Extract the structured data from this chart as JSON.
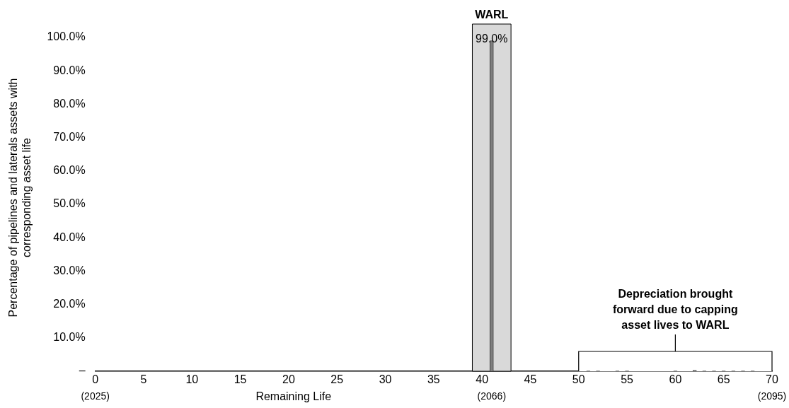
{
  "chart_data": {
    "type": "bar",
    "xlabel": "Remaining Life",
    "ylabel": "Percentage of pipelines and laterals assets with corresponding asset life",
    "x": [
      41,
      51,
      52,
      54,
      55,
      60,
      62,
      63,
      64,
      65,
      66,
      67,
      68
    ],
    "series": [
      {
        "color": "#7f7f7f",
        "values": [
          99.0,
          0.1,
          0.1,
          0.1,
          0.1,
          0.1,
          0.3,
          0.1,
          0.1,
          0.1,
          0.1,
          0.1,
          0.1
        ],
        "value_labels": [
          "99.0%",
          null,
          null,
          null,
          null,
          null,
          null,
          null,
          null,
          null,
          null,
          null,
          null
        ]
      }
    ],
    "xlim": [
      0,
      70
    ],
    "xticks": [
      0,
      5,
      10,
      15,
      20,
      25,
      30,
      35,
      40,
      45,
      50,
      55,
      60,
      65,
      70
    ],
    "x2lim": [
      2025,
      2095
    ],
    "x2ticks": [
      {
        "value": 2025,
        "label": "(2025)"
      },
      {
        "value": 2066,
        "label": "(2066)"
      },
      {
        "value": 2095,
        "label": "(2095)"
      }
    ],
    "ylim": [
      0,
      104
    ],
    "yticks": [
      {
        "value": 0,
        "label": "–"
      },
      {
        "value": 10,
        "label": "10.0%"
      },
      {
        "value": 20,
        "label": "20.0%"
      },
      {
        "value": 30,
        "label": "30.0%"
      },
      {
        "value": 40,
        "label": "40.0%"
      },
      {
        "value": 50,
        "label": "50.0%"
      },
      {
        "value": 60,
        "label": "60.0%"
      },
      {
        "value": 70,
        "label": "70.0%"
      },
      {
        "value": 80,
        "label": "80.0%"
      },
      {
        "value": 90,
        "label": "90.0%"
      },
      {
        "value": 100,
        "label": "100.0%"
      }
    ],
    "bands": [
      {
        "axis": "x",
        "from": 39,
        "to": 43,
        "label": "WARL",
        "color": "#d9d9d9"
      },
      {
        "axis": "x",
        "from": 50,
        "to": 70,
        "label": "Depreciation brought forward due to capping asset lives to WARL",
        "color": "#ffffff"
      }
    ],
    "grid": false,
    "legend": false
  }
}
